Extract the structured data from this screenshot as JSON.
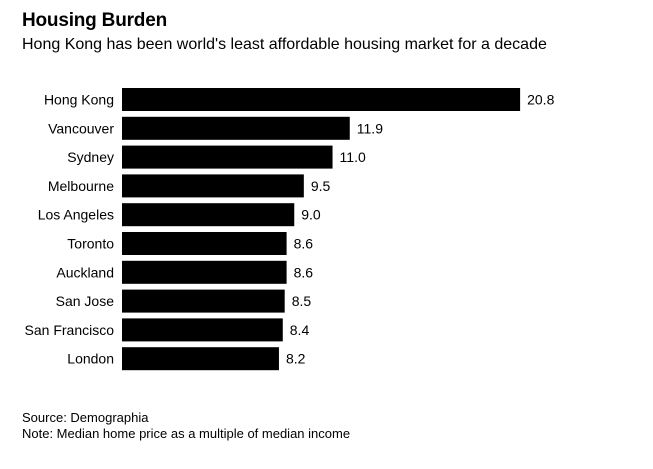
{
  "header": {
    "title": "Housing Burden",
    "subtitle": "Hong Kong has been world's least affordable housing market for a decade"
  },
  "chart_data": {
    "type": "bar",
    "orientation": "horizontal",
    "title": "Housing Burden",
    "subtitle": "Hong Kong has been world's least affordable housing market for a decade",
    "categories": [
      "Hong Kong",
      "Vancouver",
      "Sydney",
      "Melbourne",
      "Los Angeles",
      "Toronto",
      "Auckland",
      "San Jose",
      "San Francisco",
      "London"
    ],
    "values": [
      20.8,
      11.9,
      11.0,
      9.5,
      9.0,
      8.6,
      8.6,
      8.5,
      8.4,
      8.2
    ],
    "value_labels": [
      "20.8",
      "11.9",
      "11.0",
      "9.5",
      "9.0",
      "8.6",
      "8.6",
      "8.5",
      "8.4",
      "8.2"
    ],
    "xlabel": "",
    "ylabel": "",
    "bar_color": "#000000"
  },
  "footer": {
    "source": "Source: Demographia",
    "note": "Note: Median home price as a multiple of median income"
  }
}
